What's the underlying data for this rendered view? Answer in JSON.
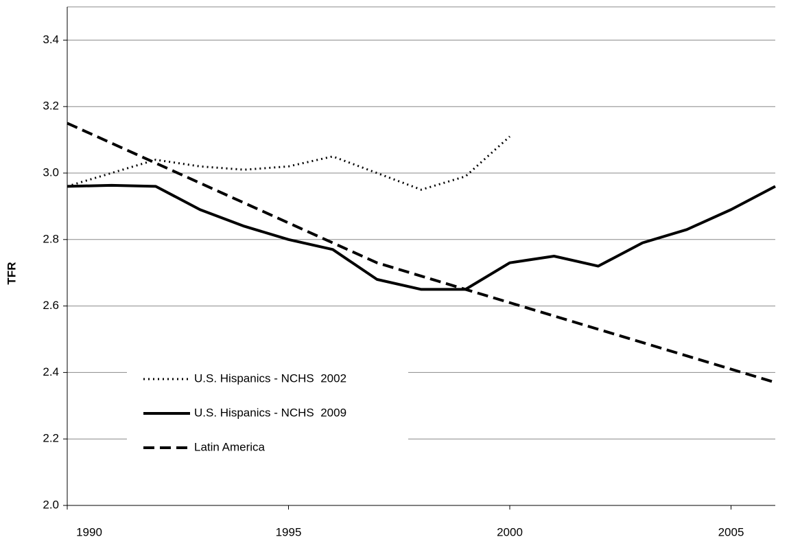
{
  "chart_data": {
    "type": "line",
    "y_label": "TFR",
    "x": [
      1990,
      1991,
      1992,
      1993,
      1994,
      1995,
      1996,
      1997,
      1998,
      1999,
      2000,
      2001,
      2002,
      2003,
      2004,
      2005,
      2006
    ],
    "xlim": [
      1990,
      2006
    ],
    "xticks": [
      1990,
      1995,
      2000,
      2005
    ],
    "ylim": [
      2.0,
      3.5
    ],
    "yticks": [
      {
        "value": 2,
        "label": "2.0"
      },
      {
        "value": 2.2,
        "label": "2.2"
      },
      {
        "value": 2.4,
        "label": "2.4"
      },
      {
        "value": 2.6,
        "label": "2.6"
      },
      {
        "value": 2.8,
        "label": "2.8"
      },
      {
        "value": 3,
        "label": "3.0"
      },
      {
        "value": 3.2,
        "label": "3.2"
      },
      {
        "value": 3.4,
        "label": "3.4"
      }
    ],
    "grid": true,
    "legend": "lower left",
    "series": [
      {
        "name": "U.S. Hispanics - NCHS  2002",
        "color": "#000000",
        "dash": "dotted",
        "values": [
          2.96,
          3.0,
          3.04,
          3.02,
          3.01,
          3.02,
          3.05,
          3.0,
          2.95,
          2.99,
          3.11,
          null,
          null,
          null,
          null,
          null,
          null
        ]
      },
      {
        "name": "U.S. Hispanics - NCHS  2009",
        "color": "#000000",
        "dash": "solid",
        "values": [
          2.96,
          2.963,
          2.96,
          2.89,
          2.84,
          2.8,
          2.77,
          2.68,
          2.65,
          2.65,
          2.73,
          2.75,
          2.72,
          2.79,
          2.83,
          2.89,
          2.96
        ]
      },
      {
        "name": "Latin America",
        "color": "#000000",
        "dash": "dashed",
        "values": [
          3.15,
          3.09,
          3.03,
          2.97,
          2.91,
          2.85,
          2.79,
          2.73,
          2.69,
          2.65,
          2.61,
          2.57,
          2.53,
          2.49,
          2.45,
          2.41,
          2.37
        ]
      }
    ]
  }
}
